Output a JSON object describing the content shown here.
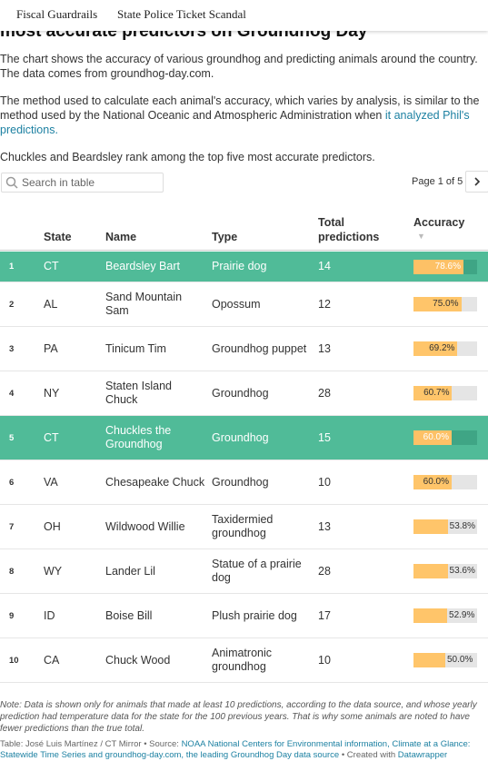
{
  "nav": {
    "links": [
      "Fiscal Guardrails",
      "State Police Ticket Scandal"
    ]
  },
  "header": {
    "title": "most accurate predictors on Groundhog Day",
    "intro": "The chart shows the accuracy of various groundhog and predicting animals around the country. The data comes from groundhog-day.com.",
    "method_text": "The method used to calculate each animal's accuracy, which varies by analysis, is similar to the method used by the National Oceanic and Atmospheric Administration when ",
    "method_link": "it analyzed Phil's predictions.",
    "highlight_note": "Chuckles and Beardsley rank among the top five most accurate predictors."
  },
  "controls": {
    "search_placeholder": "Search in table",
    "pagination": "Page 1 of 5"
  },
  "table": {
    "columns": [
      "State",
      "Name",
      "Type",
      "Total predictions",
      "Accuracy"
    ],
    "accuracy_max": 100,
    "rows": [
      {
        "rank": "1",
        "state": "CT",
        "name": "Beardsley Bart",
        "type": "Prairie dog",
        "total": "14",
        "accuracy": 78.6,
        "accuracy_label": "78.6%",
        "highlight": true
      },
      {
        "rank": "2",
        "state": "AL",
        "name": "Sand Mountain Sam",
        "type": "Opossum",
        "total": "12",
        "accuracy": 75.0,
        "accuracy_label": "75.0%",
        "highlight": false
      },
      {
        "rank": "3",
        "state": "PA",
        "name": "Tinicum Tim",
        "type": "Groundhog puppet",
        "total": "13",
        "accuracy": 69.2,
        "accuracy_label": "69.2%",
        "highlight": false
      },
      {
        "rank": "4",
        "state": "NY",
        "name": "Staten Island Chuck",
        "type": "Groundhog",
        "total": "28",
        "accuracy": 60.7,
        "accuracy_label": "60.7%",
        "highlight": false
      },
      {
        "rank": "5",
        "state": "CT",
        "name": "Chuckles the Groundhog",
        "type": "Groundhog",
        "total": "15",
        "accuracy": 60.0,
        "accuracy_label": "60.0%",
        "highlight": true
      },
      {
        "rank": "6",
        "state": "VA",
        "name": "Chesapeake Chuck",
        "type": "Groundhog",
        "total": "10",
        "accuracy": 60.0,
        "accuracy_label": "60.0%",
        "highlight": false
      },
      {
        "rank": "7",
        "state": "OH",
        "name": "Wildwood Willie",
        "type": "Taxidermied groundhog",
        "total": "13",
        "accuracy": 53.8,
        "accuracy_label": "53.8%",
        "highlight": false
      },
      {
        "rank": "8",
        "state": "WY",
        "name": "Lander Lil",
        "type": "Statue of a prairie dog",
        "total": "28",
        "accuracy": 53.6,
        "accuracy_label": "53.6%",
        "highlight": false
      },
      {
        "rank": "9",
        "state": "ID",
        "name": "Boise Bill",
        "type": "Plush prairie dog",
        "total": "17",
        "accuracy": 52.9,
        "accuracy_label": "52.9%",
        "highlight": false
      },
      {
        "rank": "10",
        "state": "CA",
        "name": "Chuck Wood",
        "type": "Animatronic groundhog",
        "total": "10",
        "accuracy": 50.0,
        "accuracy_label": "50.0%",
        "highlight": false
      }
    ]
  },
  "footer": {
    "note": "Note: Data is shown only for animals that made at least 10 predictions, according to the data source, and whose yearly prediction had temperature data for the state for the 100 previous years. That is why some animals are noted to have fewer predictions than the true total.",
    "credit": "Table: José Luis Martínez / CT Mirror • Source: ",
    "source_link": "NOAA National Centers for Environmental information, Climate at a Glance: Statewide Time Series and groundhog-day.com, the leading Groundhog Day data source",
    "created": " • Created with ",
    "tool_link": "Datawrapper"
  }
}
